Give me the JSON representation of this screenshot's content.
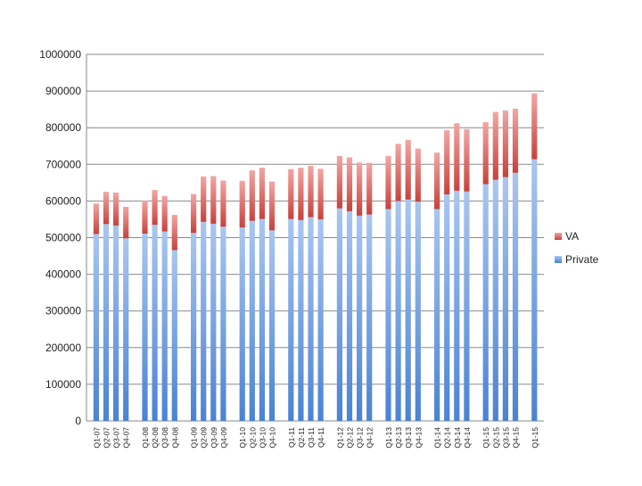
{
  "chart_data": {
    "type": "bar",
    "stacked": true,
    "title": "",
    "xlabel": "",
    "ylabel": "",
    "ylim": [
      0,
      1000000
    ],
    "yticks": [
      0,
      100000,
      200000,
      300000,
      400000,
      500000,
      600000,
      700000,
      800000,
      900000,
      1000000
    ],
    "grid": true,
    "legend_position": "right",
    "categories": [
      "Q1-07",
      "Q2-07",
      "Q3-07",
      "Q4-07",
      "Q1-08",
      "Q2-08",
      "Q3-08",
      "Q4-08",
      "Q1-09",
      "Q2-09",
      "Q3-09",
      "Q4-09",
      "Q1-10",
      "Q2-10",
      "Q3-10",
      "Q4-10",
      "Q1-11",
      "Q2-11",
      "Q3-11",
      "Q4-11",
      "Q1-12",
      "Q2-12",
      "Q3-12",
      "Q4-12",
      "Q1-13",
      "Q2-13",
      "Q3-13",
      "Q4-13",
      "Q1-14",
      "Q2-14",
      "Q3-14",
      "Q4-14",
      "Q1-15",
      "Q2-15",
      "Q3-15",
      "Q4-15",
      "Q1-15"
    ],
    "series": [
      {
        "name": "Private",
        "color": "#6f9fde",
        "values": [
          510000,
          537000,
          533000,
          498000,
          511000,
          535000,
          517000,
          466000,
          513000,
          543000,
          538000,
          530000,
          528000,
          546000,
          551000,
          520000,
          551000,
          548000,
          556000,
          550000,
          580000,
          572000,
          560000,
          563000,
          578000,
          600000,
          604000,
          598000,
          578000,
          618000,
          628000,
          626000,
          646000,
          658000,
          665000,
          677000,
          714000
        ]
      },
      {
        "name": "VA",
        "color": "#d9605c",
        "values": [
          83000,
          88000,
          90000,
          86000,
          90000,
          95000,
          97000,
          96000,
          106000,
          124000,
          130000,
          126000,
          127000,
          138000,
          140000,
          133000,
          136000,
          143000,
          140000,
          138000,
          143000,
          147000,
          145000,
          141000,
          145000,
          156000,
          163000,
          145000,
          154000,
          175000,
          184000,
          170000,
          169000,
          185000,
          182000,
          175000,
          180000
        ]
      }
    ]
  }
}
